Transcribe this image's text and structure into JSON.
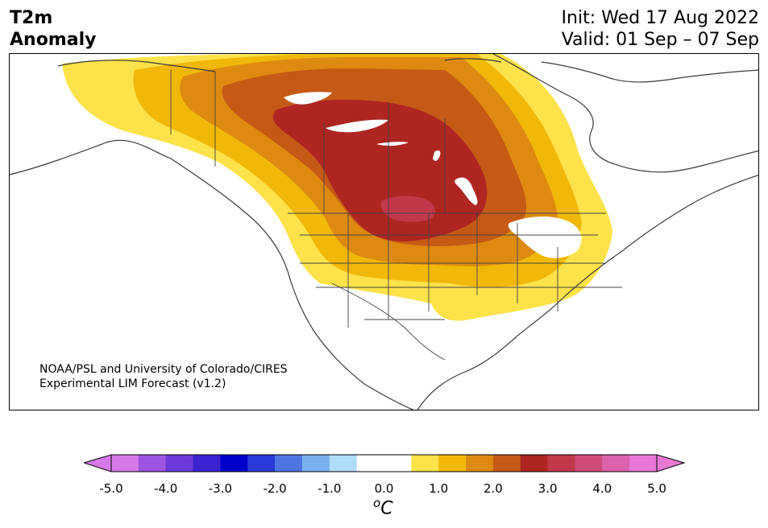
{
  "header": {
    "title_line1": "T2m",
    "title_line2": "Anomaly",
    "init": "Init: Wed 17 Aug 2022",
    "valid": "Valid: 01 Sep – 07 Sep"
  },
  "map": {
    "region": "North America",
    "credit_line1": "NOAA/PSL and University of Colorado/CIRES",
    "credit_line2": "Experimental LIM Forecast (v1.2)",
    "anomaly_colors": {
      "0.5": "#fde24a",
      "1.0": "#f1b80a",
      "1.5": "#de8a10",
      "2.0": "#c55a16",
      "2.5": "#ae2522",
      "3.0": "#c0384a"
    }
  },
  "colorbar": {
    "unit_base": "C",
    "unit_super": "o",
    "ticks": [
      "-5.0",
      "-4.0",
      "-3.0",
      "-2.0",
      "-1.0",
      "0.0",
      "1.0",
      "2.0",
      "3.0",
      "4.0",
      "5.0"
    ],
    "colors": [
      "#d679e8",
      "#9b55e0",
      "#6a38d8",
      "#3a22d0",
      "#0000cc",
      "#2a3ad8",
      "#4f74e2",
      "#79b0ef",
      "#afdcfa",
      "#ffffff",
      "#ffffff",
      "#fde24a",
      "#f1b80a",
      "#de8a10",
      "#c55a16",
      "#ae2522",
      "#c0384a",
      "#cf4c7a",
      "#db62ad",
      "#e878d6"
    ],
    "extend_min_color": "#d679e8",
    "extend_max_color": "#e878d6"
  }
}
